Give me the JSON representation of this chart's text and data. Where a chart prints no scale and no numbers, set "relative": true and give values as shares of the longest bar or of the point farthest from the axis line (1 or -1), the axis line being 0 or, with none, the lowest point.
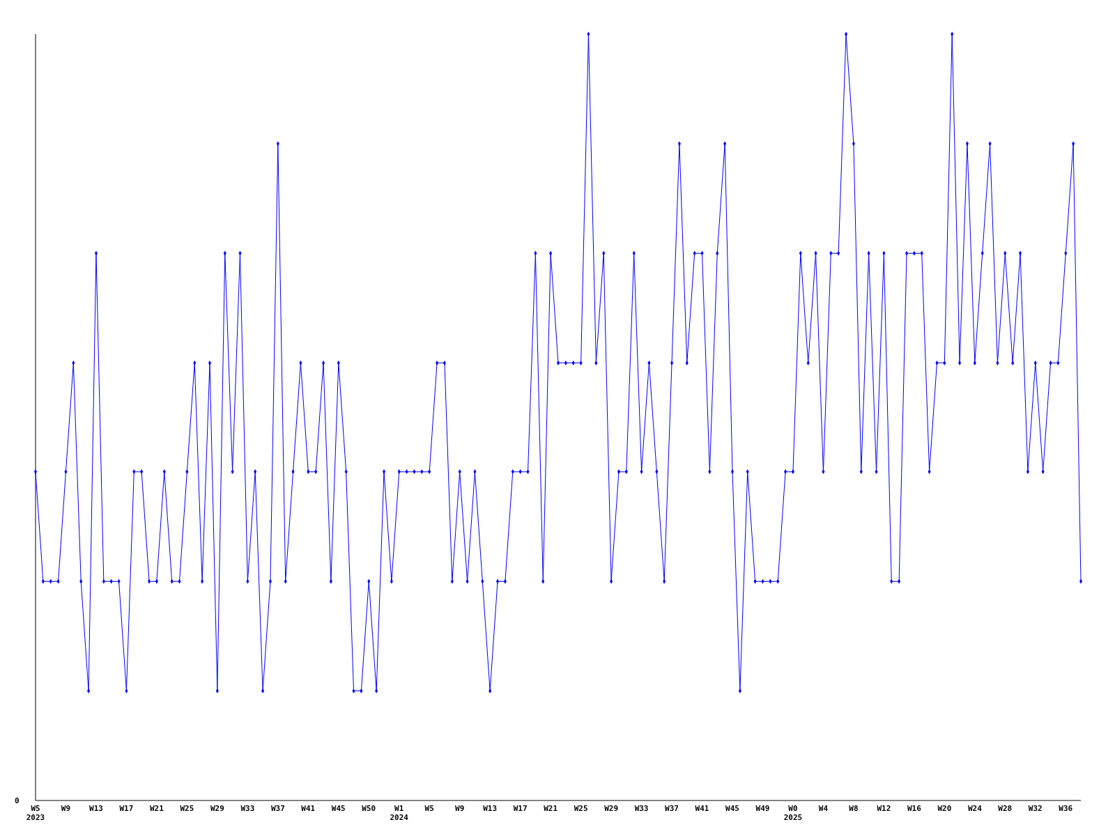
{
  "chart_data": {
    "type": "line",
    "relative": true,
    "marker": "diamond",
    "line_style": "solid",
    "annotations": [
      "0"
    ],
    "categories": [
      "W5\n2023",
      null,
      null,
      null,
      "W9",
      null,
      null,
      null,
      "W13",
      null,
      null,
      null,
      "W17",
      null,
      null,
      null,
      "W21",
      null,
      null,
      null,
      "W25",
      null,
      null,
      null,
      "W29",
      null,
      null,
      null,
      "W33",
      null,
      null,
      null,
      "W37",
      null,
      null,
      null,
      "W41",
      null,
      null,
      null,
      "W45",
      null,
      null,
      null,
      "W50",
      null,
      null,
      null,
      "W1\n2024",
      null,
      null,
      null,
      "W5",
      null,
      null,
      null,
      "W9",
      null,
      null,
      null,
      "W13",
      null,
      null,
      null,
      "W17",
      null,
      null,
      null,
      "W21",
      null,
      null,
      null,
      "W25",
      null,
      null,
      null,
      "W29",
      null,
      null,
      null,
      "W33",
      null,
      null,
      null,
      "W37",
      null,
      null,
      null,
      "W41",
      null,
      null,
      null,
      "W45",
      null,
      null,
      null,
      "W49",
      null,
      null,
      null,
      "W0\n2025",
      null,
      null,
      null,
      "W4",
      null,
      null,
      null,
      "W8",
      null,
      null,
      null,
      "W12",
      null,
      null,
      null,
      "W16",
      null,
      null,
      null,
      "W20",
      null,
      null,
      null,
      "W24",
      null,
      null,
      null,
      "W28",
      null,
      null,
      null,
      "W32",
      null,
      null,
      null,
      "W36",
      null,
      null
    ],
    "series": [
      {
        "color": "#0000ff",
        "values": [
          0.429,
          0.286,
          0.286,
          0.286,
          0.429,
          0.571,
          0.286,
          0.143,
          0.714,
          0.286,
          0.286,
          0.286,
          0.143,
          0.429,
          0.429,
          0.286,
          0.286,
          0.429,
          0.286,
          0.286,
          0.429,
          0.571,
          0.286,
          0.571,
          0.143,
          0.714,
          0.429,
          0.714,
          0.286,
          0.429,
          0.143,
          0.286,
          0.857,
          0.286,
          0.429,
          0.571,
          0.429,
          0.429,
          0.571,
          0.286,
          0.571,
          0.429,
          0.143,
          0.143,
          0.286,
          0.143,
          0.429,
          0.286,
          0.429,
          0.429,
          0.429,
          0.429,
          0.429,
          0.571,
          0.571,
          0.286,
          0.429,
          0.286,
          0.429,
          0.286,
          0.143,
          0.286,
          0.286,
          0.429,
          0.429,
          0.429,
          0.714,
          0.286,
          0.714,
          0.571,
          0.571,
          0.571,
          0.571,
          1,
          0.571,
          0.714,
          0.286,
          0.429,
          0.429,
          0.714,
          0.429,
          0.571,
          0.429,
          0.286,
          0.571,
          0.857,
          0.571,
          0.714,
          0.714,
          0.429,
          0.714,
          0.857,
          0.429,
          0.143,
          0.429,
          0.286,
          0.286,
          0.286,
          0.286,
          0.429,
          0.429,
          0.714,
          0.571,
          0.714,
          0.429,
          0.714,
          0.714,
          1,
          0.857,
          0.429,
          0.714,
          0.429,
          0.714,
          0.286,
          0.286,
          0.714,
          0.714,
          0.714,
          0.429,
          0.571,
          0.571,
          1,
          0.571,
          0.857,
          0.571,
          0.714,
          0.857,
          0.571,
          0.714,
          0.571,
          0.714,
          0.429,
          0.571,
          0.429,
          0.571,
          0.571,
          0.714,
          0.857,
          0.286
        ]
      }
    ]
  }
}
